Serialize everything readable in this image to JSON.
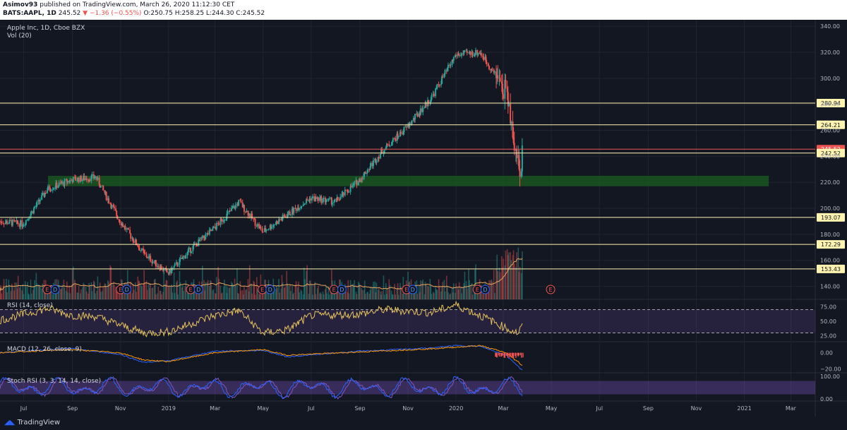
{
  "header": {
    "author": "Asimov93",
    "published": "published on TradingView.com, March 26, 2020 11:12:30 CET",
    "symbol": "BATS:AAPL, 1D",
    "last": "245.52",
    "change": "−1.36 (−0.55%)",
    "ohlc": "O:250.75 H:258.25 L:244.30 C:245.52"
  },
  "footer": {
    "brand": "TradingView"
  },
  "colors": {
    "background": "#131722",
    "up": "#26a69a",
    "down": "#ef5350",
    "level": "#fff3b0",
    "zone": "#1b5e20",
    "rsi": "#e6c35c",
    "stoch_k": "#7e57c2",
    "stoch_d": "#2962ff"
  },
  "chart_data": [
    {
      "type": "candlestick",
      "title": "Apple Inc, 1D, Cboe BZX",
      "overlay": "Vol (20)",
      "y_ticks": [
        140,
        160,
        180,
        200,
        220,
        240,
        260,
        280,
        300,
        320,
        340
      ],
      "ylim": [
        130,
        345
      ],
      "x_ticks": [
        "Jul",
        "Sep",
        "Nov",
        "2019",
        "Mar",
        "May",
        "Jul",
        "Sep",
        "Nov",
        "2020",
        "Mar",
        "May",
        "Jul",
        "Sep",
        "Nov",
        "2021",
        "Mar"
      ],
      "levels": [
        280.94,
        264.21,
        245.52,
        242.52,
        193.07,
        172.29,
        153.43
      ],
      "current_price": 245.52,
      "support_zone": [
        217,
        225
      ],
      "earnings_markers": [
        "E",
        "D",
        "E",
        "D",
        "E",
        "D",
        "E",
        "D",
        "E",
        "D",
        "E",
        "D",
        "E",
        "D",
        "E"
      ],
      "path": [
        [
          "2018-06",
          190
        ],
        [
          "2018-07",
          188
        ],
        [
          "2018-08",
          215
        ],
        [
          "2018-09",
          222
        ],
        [
          "2018-10",
          224
        ],
        [
          "2018-11",
          190
        ],
        [
          "2018-12",
          165
        ],
        [
          "2019-01",
          150
        ],
        [
          "2019-02",
          170
        ],
        [
          "2019-03",
          185
        ],
        [
          "2019-04",
          205
        ],
        [
          "2019-05",
          182
        ],
        [
          "2019-06",
          195
        ],
        [
          "2019-07",
          208
        ],
        [
          "2019-08",
          205
        ],
        [
          "2019-09",
          222
        ],
        [
          "2019-10",
          245
        ],
        [
          "2019-11",
          263
        ],
        [
          "2019-12",
          285
        ],
        [
          "2020-01",
          318
        ],
        [
          "2020-02",
          320
        ],
        [
          "2020-03-05",
          290
        ],
        [
          "2020-03-23",
          224
        ],
        [
          "2020-03-26",
          245.52
        ]
      ]
    },
    {
      "type": "line",
      "title": "RSI (14, close)",
      "y_ticks": [
        "75.00",
        "50.00",
        "25.00"
      ],
      "ylim": [
        15,
        85
      ],
      "bands": [
        30,
        70
      ],
      "x": [
        "2018-06",
        "2018-08",
        "2018-09",
        "2018-10",
        "2018-12",
        "2019-01",
        "2019-03",
        "2019-04",
        "2019-05",
        "2019-06",
        "2019-07",
        "2019-09",
        "2019-10",
        "2019-12",
        "2020-01",
        "2020-02",
        "2020-03-10",
        "2020-03-20",
        "2020-03-26"
      ],
      "values": [
        52,
        72,
        60,
        58,
        30,
        32,
        60,
        68,
        30,
        35,
        60,
        62,
        70,
        65,
        78,
        60,
        35,
        30,
        42
      ]
    },
    {
      "type": "line",
      "title": "MACD (12, 26, close, 9)",
      "y_ticks": [
        "0.00",
        "−20.00"
      ],
      "ylim": [
        -25,
        12
      ],
      "x": [
        "2018-06",
        "2018-08",
        "2018-09",
        "2018-11",
        "2018-12",
        "2019-01",
        "2019-03",
        "2019-05",
        "2019-06",
        "2019-09",
        "2019-12",
        "2020-01",
        "2020-02",
        "2020-03-05",
        "2020-03-26"
      ],
      "series": [
        {
          "values": [
            0,
            4,
            5,
            -2,
            -12,
            -10,
            2,
            3,
            -5,
            2,
            6,
            9,
            8,
            -3,
            -22
          ]
        },
        {
          "values": [
            0,
            3,
            4,
            0,
            -9,
            -11,
            0,
            4,
            -3,
            1,
            5,
            7,
            9,
            0,
            -16
          ]
        }
      ]
    },
    {
      "type": "line",
      "title": "Stoch RSI (3, 3, 14, 14, close)",
      "y_ticks": [
        "100.00",
        "0.00"
      ],
      "ylim": [
        -10,
        110
      ],
      "bands": [
        20,
        80
      ]
    }
  ]
}
